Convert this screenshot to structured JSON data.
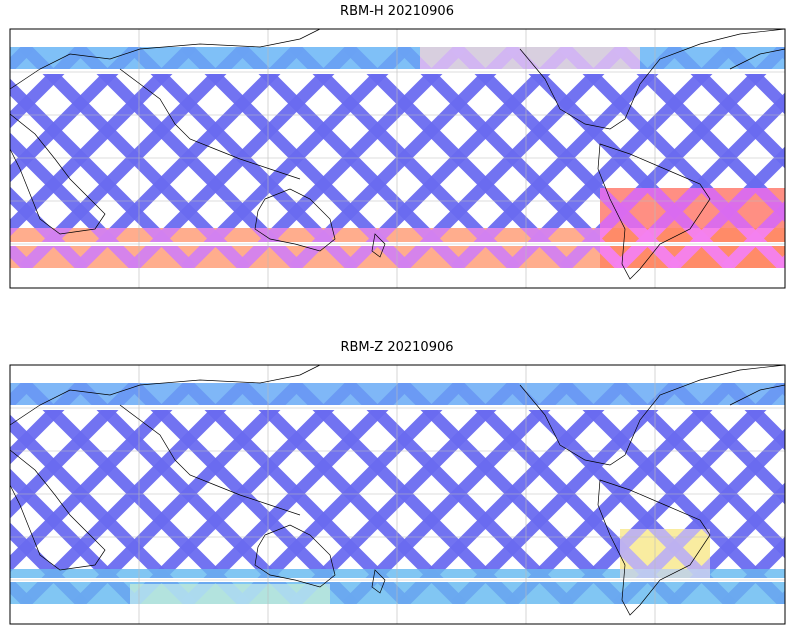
{
  "panels": [
    {
      "title": "RBM-H 20210906"
    },
    {
      "title": "RBM-Z 20210906"
    }
  ]
}
